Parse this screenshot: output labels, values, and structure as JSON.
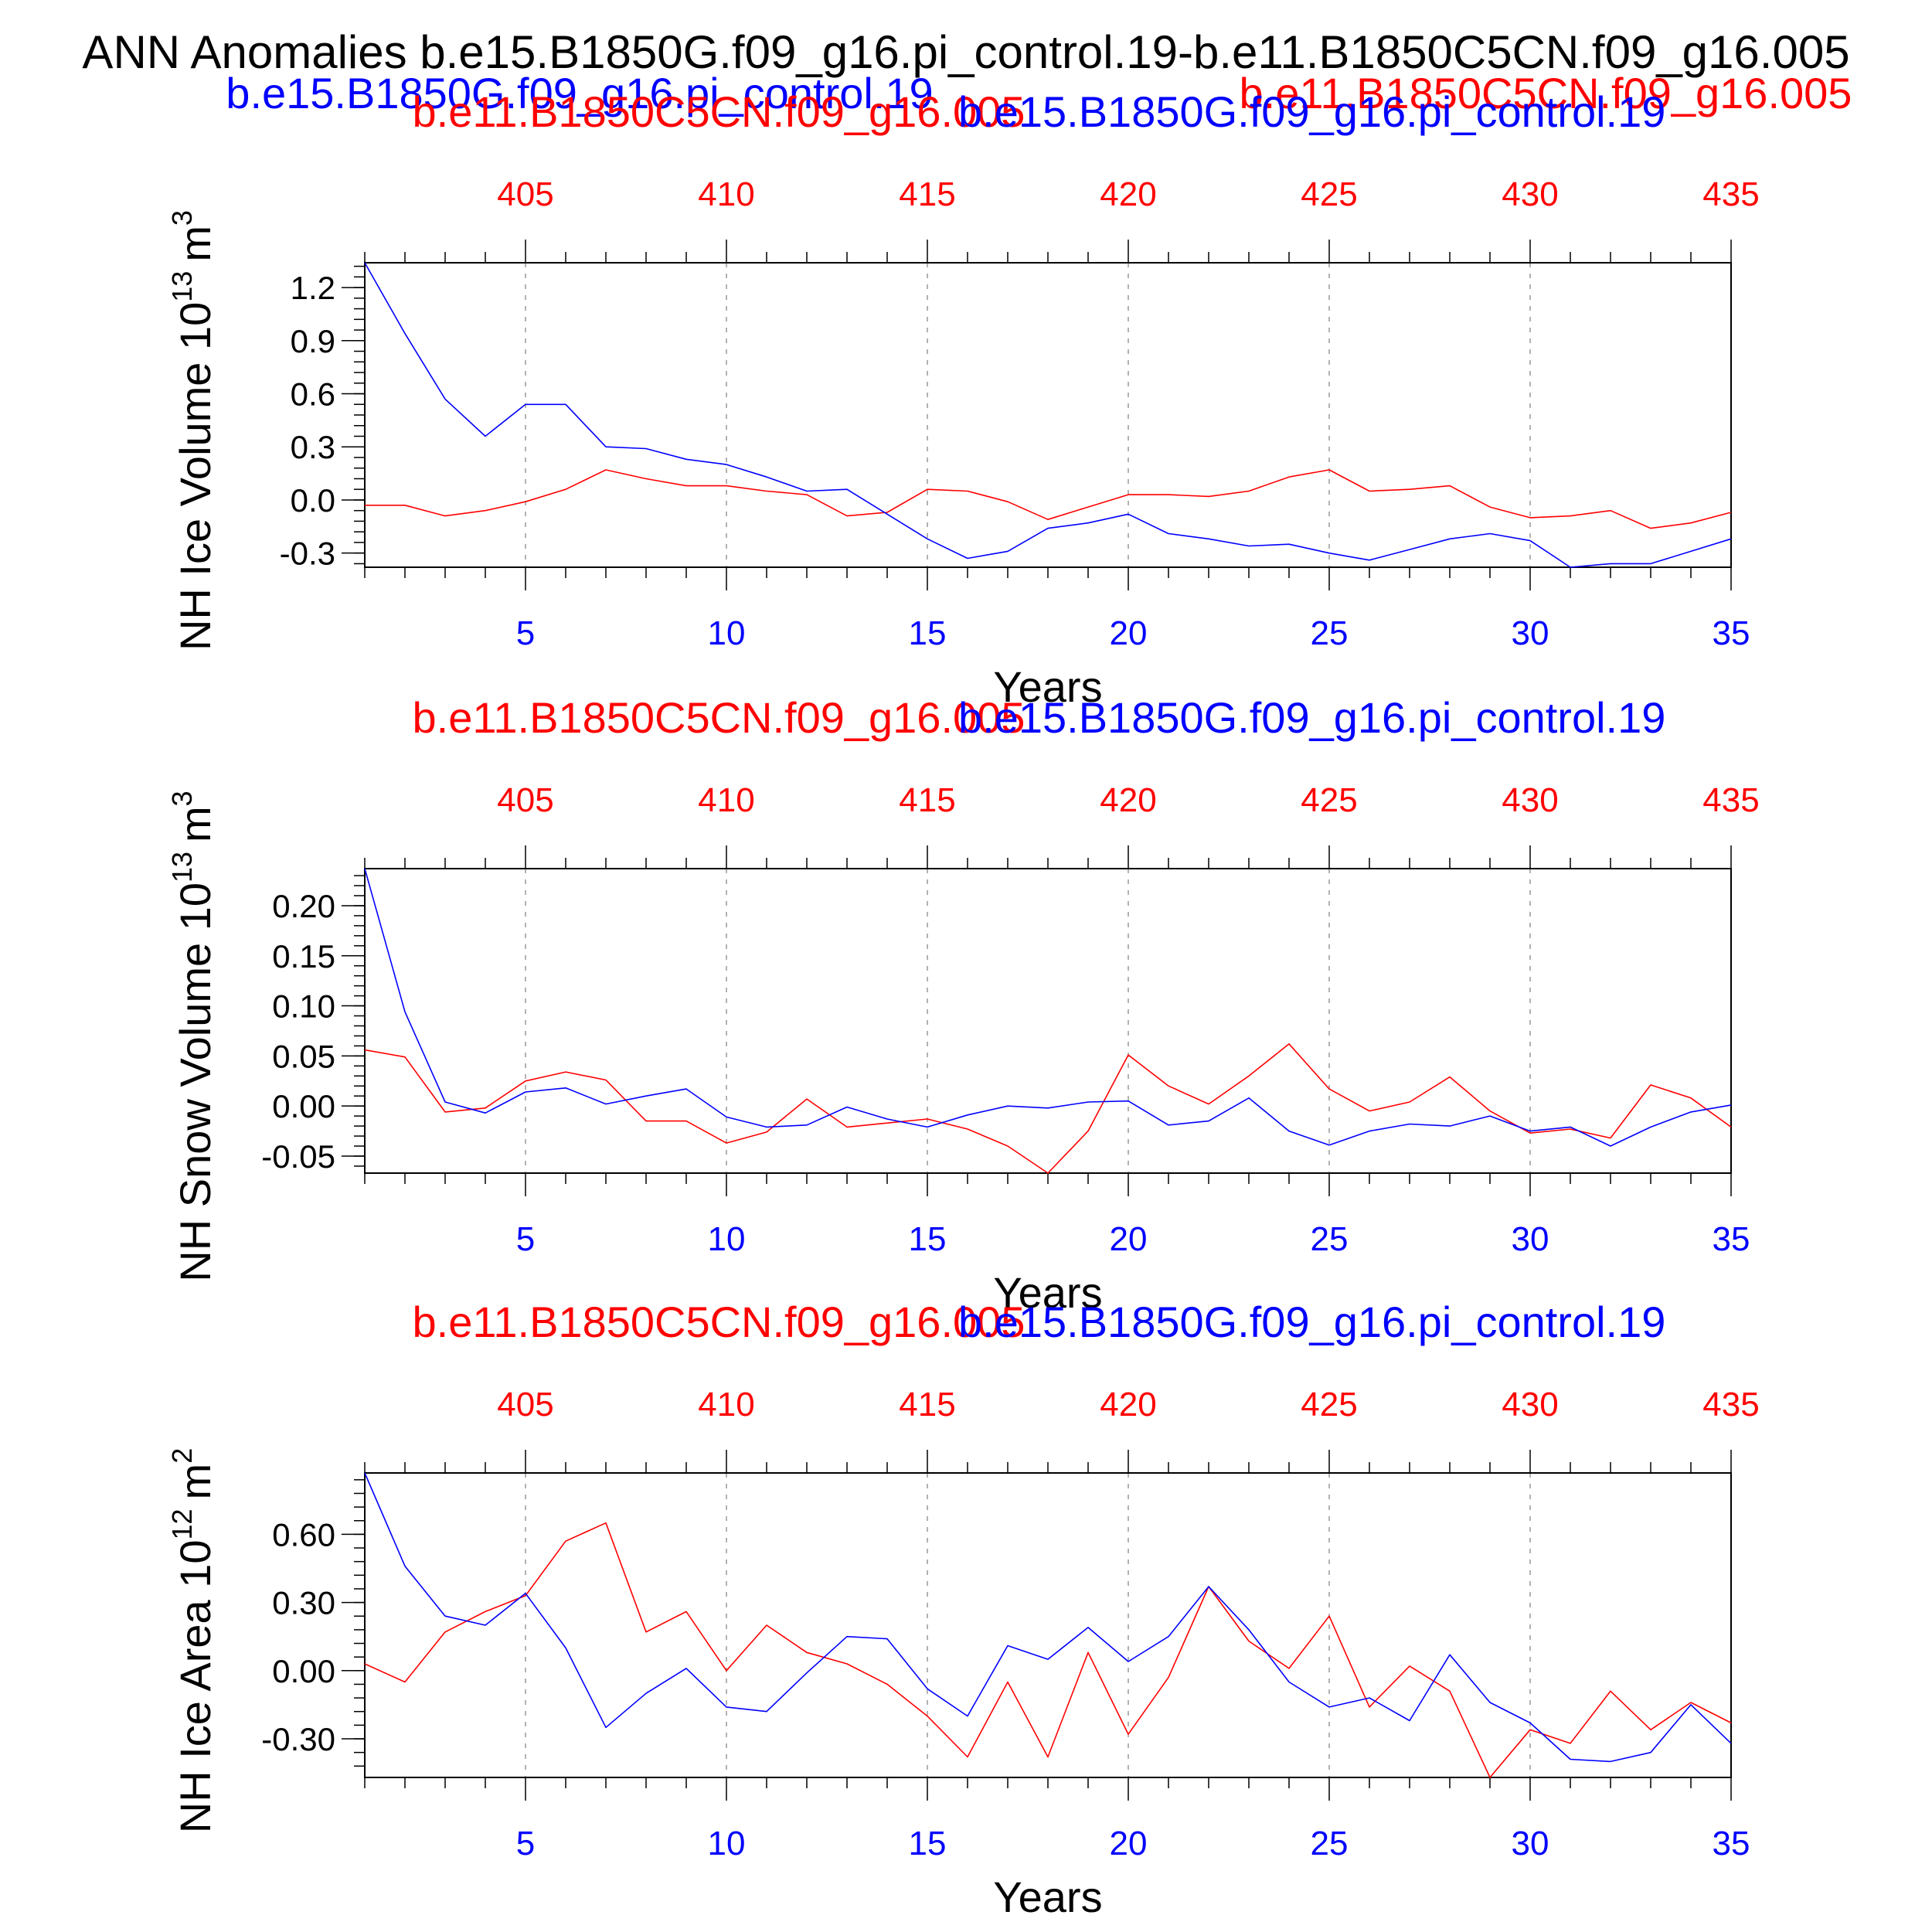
{
  "page_title": "ANN Anomalies b.e15.B1850G.f09_g16.pi_control.19-b.e11.B1850C5CN.f09_g16.005",
  "header": {
    "left_case": "b.e15.B1850G.f09_g16.pi_control.19",
    "right_case": "b.e11.B1850C5CN.f09_g16.005"
  },
  "colors": {
    "case1": "#0000ff",
    "case2": "#ff0000",
    "text": "#000000",
    "grid": "#999999"
  },
  "chart_data": [
    {
      "type": "line",
      "top_left_label": "b.e11.B1850C5CN.f09_g16.005",
      "top_right_label": "b.e15.B1850G.f09_g16.pi_control.19",
      "ylabel": "NH Ice Volume 10",
      "ylabel_exp": "13",
      "ylabel_unit": "m",
      "ylabel_unit_exp": "3",
      "xlabel": "Years",
      "xlim": [
        1,
        35
      ],
      "ylim": [
        -0.38,
        1.34
      ],
      "yticks": [
        "1.2",
        "0.9",
        "0.6",
        "0.3",
        "0.0",
        "-0.3"
      ],
      "ytick_values": [
        1.2,
        0.9,
        0.6,
        0.3,
        0.0,
        -0.3
      ],
      "yminor_step": 0.06,
      "xticks_bottom": [
        "5",
        "10",
        "15",
        "20",
        "25",
        "30",
        "35"
      ],
      "xticks_top": [
        "405",
        "410",
        "415",
        "420",
        "425",
        "430",
        "435"
      ],
      "xtick_values": [
        5,
        10,
        15,
        20,
        25,
        30,
        35
      ],
      "grid": "vertical dashed",
      "series": [
        {
          "name": "b.e15.B1850G.f09_g16.pi_control.19",
          "color": "#0000ff",
          "values": [
            1.34,
            0.94,
            0.57,
            0.36,
            0.54,
            0.54,
            0.3,
            0.29,
            0.23,
            0.2,
            0.13,
            0.05,
            0.06,
            -0.08,
            -0.22,
            -0.33,
            -0.29,
            -0.16,
            -0.13,
            -0.08,
            -0.19,
            -0.22,
            -0.26,
            -0.25,
            -0.3,
            -0.34,
            -0.28,
            -0.22,
            -0.19,
            -0.23,
            -0.39,
            -0.36,
            -0.36,
            -0.29,
            -0.22
          ]
        },
        {
          "name": "b.e11.B1850C5CN.f09_g16.005",
          "color": "#ff0000",
          "values": [
            -0.03,
            -0.03,
            -0.09,
            -0.06,
            -0.01,
            0.06,
            0.17,
            0.12,
            0.08,
            0.08,
            0.05,
            0.03,
            -0.09,
            -0.07,
            0.06,
            0.05,
            -0.01,
            -0.11,
            -0.04,
            0.03,
            0.03,
            0.02,
            0.05,
            0.13,
            0.17,
            0.05,
            0.06,
            0.08,
            -0.04,
            -0.1,
            -0.09,
            -0.06,
            -0.16,
            -0.13,
            -0.07
          ]
        }
      ]
    },
    {
      "type": "line",
      "top_left_label": "b.e11.B1850C5CN.f09_g16.005",
      "top_right_label": "b.e15.B1850G.f09_g16.pi_control.19",
      "ylabel": "NH Snow Volume 10",
      "ylabel_exp": "13",
      "ylabel_unit": "m",
      "ylabel_unit_exp": "3",
      "xlabel": "Years",
      "xlim": [
        1,
        35
      ],
      "ylim": [
        -0.067,
        0.237
      ],
      "yticks": [
        "0.20",
        "0.15",
        "0.10",
        "0.05",
        "0.00",
        "-0.05"
      ],
      "ytick_values": [
        0.2,
        0.15,
        0.1,
        0.05,
        0.0,
        -0.05
      ],
      "yminor_step": 0.01,
      "xticks_bottom": [
        "5",
        "10",
        "15",
        "20",
        "25",
        "30",
        "35"
      ],
      "xticks_top": [
        "405",
        "410",
        "415",
        "420",
        "425",
        "430",
        "435"
      ],
      "xtick_values": [
        5,
        10,
        15,
        20,
        25,
        30,
        35
      ],
      "grid": "vertical dashed",
      "series": [
        {
          "name": "b.e15.B1850G.f09_g16.pi_control.19",
          "color": "#0000ff",
          "values": [
            0.237,
            0.094,
            0.004,
            -0.007,
            0.014,
            0.018,
            0.002,
            0.01,
            0.017,
            -0.011,
            -0.021,
            -0.019,
            -0.001,
            -0.013,
            -0.021,
            -0.009,
            0.0,
            -0.002,
            0.004,
            0.005,
            -0.019,
            -0.015,
            0.008,
            -0.025,
            -0.039,
            -0.025,
            -0.018,
            -0.02,
            -0.01,
            -0.025,
            -0.021,
            -0.04,
            -0.021,
            -0.006,
            0.001
          ]
        },
        {
          "name": "b.e11.B1850C5CN.f09_g16.005",
          "color": "#ff0000",
          "values": [
            0.056,
            0.049,
            -0.006,
            -0.002,
            0.025,
            0.034,
            0.026,
            -0.015,
            -0.015,
            -0.037,
            -0.026,
            0.007,
            -0.021,
            -0.017,
            -0.013,
            -0.023,
            -0.04,
            -0.067,
            -0.025,
            0.051,
            0.02,
            0.002,
            0.03,
            0.062,
            0.017,
            -0.005,
            0.004,
            0.029,
            -0.005,
            -0.027,
            -0.023,
            -0.032,
            0.021,
            0.008,
            -0.021
          ]
        }
      ]
    },
    {
      "type": "line",
      "top_left_label": "b.e11.B1850C5CN.f09_g16.005",
      "top_right_label": "b.e15.B1850G.f09_g16.pi_control.19",
      "ylabel": "NH Ice Area 10",
      "ylabel_exp": "12",
      "ylabel_unit": "m",
      "ylabel_unit_exp": "2",
      "xlabel": "Years",
      "xlim": [
        1,
        35
      ],
      "ylim": [
        -0.47,
        0.87
      ],
      "yticks": [
        "0.60",
        "0.30",
        "0.00",
        "-0.30"
      ],
      "ytick_values": [
        0.6,
        0.3,
        0.0,
        -0.3
      ],
      "yminor_step": 0.06,
      "xticks_bottom": [
        "5",
        "10",
        "15",
        "20",
        "25",
        "30",
        "35"
      ],
      "xticks_top": [
        "405",
        "410",
        "415",
        "420",
        "425",
        "430",
        "435"
      ],
      "xtick_values": [
        5,
        10,
        15,
        20,
        25,
        30,
        35
      ],
      "grid": "vertical dashed",
      "series": [
        {
          "name": "b.e15.B1850G.f09_g16.pi_control.19",
          "color": "#0000ff",
          "values": [
            0.87,
            0.46,
            0.24,
            0.2,
            0.34,
            0.1,
            -0.25,
            -0.1,
            0.01,
            -0.16,
            -0.18,
            -0.01,
            0.15,
            0.14,
            -0.08,
            -0.2,
            0.11,
            0.05,
            0.19,
            0.04,
            0.15,
            0.37,
            0.18,
            -0.05,
            -0.16,
            -0.12,
            -0.22,
            0.07,
            -0.14,
            -0.23,
            -0.39,
            -0.4,
            -0.36,
            -0.15,
            -0.32
          ]
        },
        {
          "name": "b.e11.B1850C5CN.f09_g16.005",
          "color": "#ff0000",
          "values": [
            0.03,
            -0.05,
            0.17,
            0.26,
            0.33,
            0.57,
            0.65,
            0.17,
            0.26,
            0.0,
            0.2,
            0.08,
            0.03,
            -0.06,
            -0.2,
            -0.38,
            -0.05,
            -0.38,
            0.08,
            -0.28,
            -0.03,
            0.37,
            0.13,
            0.01,
            0.24,
            -0.16,
            0.02,
            -0.09,
            -0.47,
            -0.26,
            -0.32,
            -0.09,
            -0.26,
            -0.14,
            -0.23
          ]
        }
      ]
    }
  ]
}
